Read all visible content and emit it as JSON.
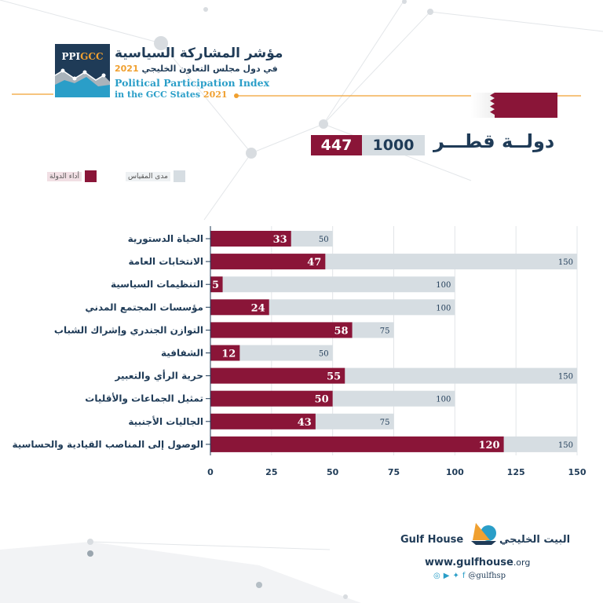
{
  "header": {
    "logo_text_a": "PPI",
    "logo_text_b": "GCC",
    "title_ar": "مؤشر المشاركة السياسية",
    "subtitle_ar": "في دول مجلس التعاون الخليجي",
    "subtitle_year": "2021",
    "title_en_line1": "Political Participation Index",
    "title_en_line2": "in the GCC States",
    "title_en_year": "2021"
  },
  "country": {
    "name": "دولــة قطـــر",
    "total_score": "447",
    "max_score": "1000",
    "flag": "qatar-flag"
  },
  "legend": {
    "country_performance": "أداء الدولة",
    "scale_range": "مدى المقياس"
  },
  "colors": {
    "performance": "#8a1538",
    "range": "#d6dde2",
    "text": "#1f3b57",
    "accent": "#f0a030"
  },
  "chart_data": {
    "type": "bar",
    "orientation": "horizontal",
    "categories": [
      "الحياة الدستورية",
      "الانتخابات العامة",
      "التنظيمات السياسية",
      "مؤسسات المجتمع المدني",
      "التوازن الجندري وإشراك الشباب",
      "الشفافية",
      "حرية الرأي والتعبير",
      "تمثيل الجماعات والأقليات",
      "الجاليات الأجنبية",
      "الوصول إلى المناصب القيادية والحساسية"
    ],
    "series": [
      {
        "name": "أداء الدولة",
        "values": [
          33,
          47,
          5,
          24,
          58,
          12,
          55,
          50,
          43,
          120
        ]
      },
      {
        "name": "مدى المقياس",
        "values": [
          50,
          150,
          100,
          100,
          75,
          50,
          150,
          100,
          75,
          150
        ]
      }
    ],
    "xlim": [
      0,
      150
    ],
    "xticks": [
      0,
      25,
      50,
      75,
      100,
      125,
      150
    ],
    "grid": true,
    "legend_position": "top-left"
  },
  "footer": {
    "brand_en": "Gulf House",
    "brand_ar": "البيت الخليجي",
    "url_main": "www.gulfhouse",
    "url_tld": ".org",
    "handle": "@gulfhsp",
    "social_icons": [
      "instagram-icon",
      "youtube-icon",
      "twitter-icon",
      "facebook-icon"
    ]
  }
}
